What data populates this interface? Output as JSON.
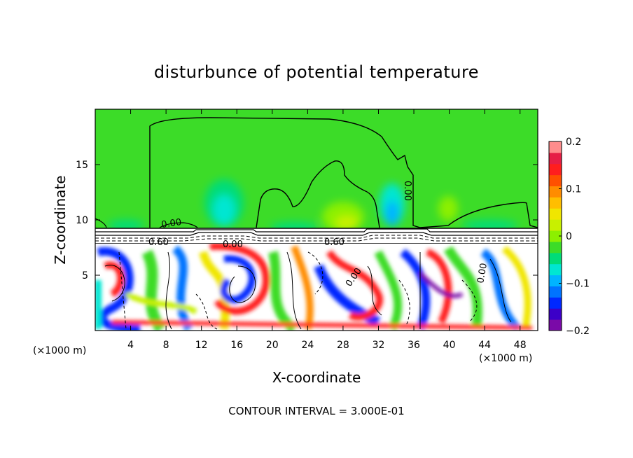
{
  "chart_data": {
    "type": "heatmap",
    "title": "disturbunce of potential temperature",
    "xlabel": "X-coordinate",
    "ylabel": "Z-coordinate",
    "x_unit": "(×1000 m)",
    "x_unit_right": "(×1000 m)",
    "xlim": [
      0,
      50
    ],
    "ylim": [
      0,
      20
    ],
    "x_ticks": [
      4,
      8,
      12,
      16,
      20,
      24,
      28,
      32,
      36,
      40,
      44,
      48
    ],
    "y_ticks": [
      5,
      10,
      15
    ],
    "colorbar": {
      "range": [
        -0.2,
        0.2
      ],
      "tick_labels": [
        "0.2",
        "0.1",
        "0",
        "−0.1",
        "−0.2"
      ],
      "tick_values": [
        0.2,
        0.1,
        0,
        -0.1,
        -0.2
      ],
      "colors": [
        "#7a0aa8",
        "#3c00c8",
        "#0028ff",
        "#0073ff",
        "#00b4ff",
        "#00e6d2",
        "#00dc78",
        "#3cdc28",
        "#8cf000",
        "#c8f000",
        "#f0e600",
        "#ffbe00",
        "#ff8c00",
        "#ff5000",
        "#ff1e1e",
        "#e61e46",
        "#ff8c8c"
      ]
    },
    "contour_interval_label": "CONTOUR INTERVAL = 3.000E-01",
    "contour_labels": [
      "0.00",
      "0.60",
      "0.00",
      "0.60",
      "0.00",
      "0.00",
      "0.00"
    ],
    "grid": false,
    "colorbar_position": "right"
  }
}
